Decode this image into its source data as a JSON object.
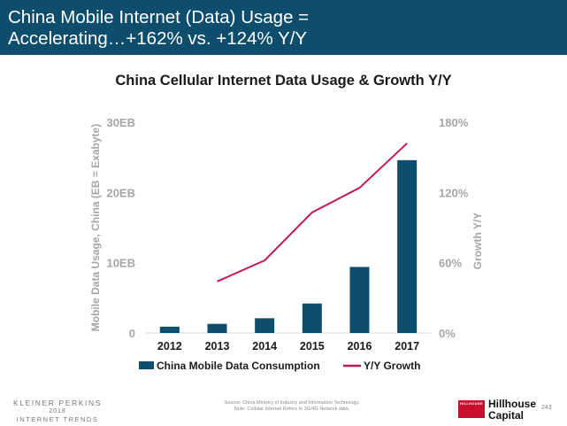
{
  "slide": {
    "title": "China Mobile Internet (Data) Usage =\nAccelerating…+162% vs. +124% Y/Y",
    "page_number": "243",
    "footer": {
      "kpcb_line1": "KLEINER PERKINS",
      "kpcb_line2": "2018",
      "kpcb_line3": "INTERNET TRENDS",
      "source_line1": "Source: China Ministry of Industry and Information Technology.",
      "source_line2": "Note: Cellular Internet Refers to 3G/4G Network data.",
      "logo_box_text": "HILLHOUSE",
      "logo_line1": "Hillhouse",
      "logo_line2": "Capital"
    }
  },
  "colors": {
    "header_bg": "#0e4d6b",
    "bar": "#0e4d6b",
    "line": "#c2185b",
    "axis_text": "#a6a6a6",
    "category_text": "#1a1a1a"
  },
  "chart_data": {
    "type": "bar+line",
    "title": "China Cellular Internet Data Usage & Growth Y/Y",
    "categories": [
      "2012",
      "2013",
      "2014",
      "2015",
      "2016",
      "2017"
    ],
    "series": [
      {
        "name": "China Mobile Data Consumption",
        "type": "bar",
        "axis": "left",
        "values": [
          0.9,
          1.3,
          2.1,
          4.2,
          9.4,
          24.6
        ]
      },
      {
        "name": "Y/Y Growth",
        "type": "line",
        "axis": "right",
        "values": [
          null,
          44,
          62,
          103,
          124,
          162
        ]
      }
    ],
    "ylabel": "Mobile Data Usage, China (EB = Exabyte)",
    "y2label": "Growth Y/Y",
    "ylim": [
      0,
      30
    ],
    "y2lim": [
      0,
      180
    ],
    "yticks": [
      "0",
      "10EB",
      "20EB",
      "30EB"
    ],
    "y2ticks": [
      "0%",
      "60%",
      "120%",
      "180%"
    ],
    "grid": false,
    "legend_position": "bottom"
  }
}
